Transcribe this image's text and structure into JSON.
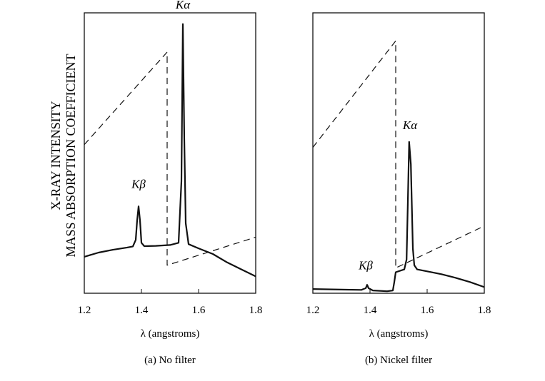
{
  "figure": {
    "ylabel_line1": "X-RAY INTENSITY",
    "ylabel_line2": "MASS ABSORPTION COEFFICIENT"
  },
  "chart_data": [
    {
      "type": "line",
      "panel": "a",
      "caption": "(a) No filter",
      "xlabel": "λ (angstroms)",
      "xlim": [
        1.2,
        1.8
      ],
      "xticks": [
        1.2,
        1.4,
        1.6,
        1.8
      ],
      "xtick_labels": [
        "1.2",
        "1.4",
        "1.6",
        "1.8"
      ],
      "ylim": [
        0,
        1
      ],
      "annotations": [
        {
          "text": "Kβ",
          "x": 1.39,
          "y": 0.36
        },
        {
          "text": "Kα",
          "x": 1.545,
          "y": 1.0
        }
      ],
      "series": [
        {
          "style": "solid",
          "x": [
            1.2,
            1.25,
            1.3,
            1.35,
            1.37,
            1.38,
            1.385,
            1.39,
            1.395,
            1.4,
            1.41,
            1.45,
            1.5,
            1.53,
            1.54,
            1.545,
            1.55,
            1.555,
            1.565,
            1.6,
            1.65,
            1.7,
            1.75,
            1.8
          ],
          "y": [
            0.13,
            0.145,
            0.155,
            0.163,
            0.167,
            0.19,
            0.26,
            0.31,
            0.26,
            0.18,
            0.168,
            0.169,
            0.172,
            0.18,
            0.4,
            0.96,
            0.55,
            0.25,
            0.175,
            0.16,
            0.14,
            0.11,
            0.085,
            0.06
          ]
        },
        {
          "style": "dashed",
          "x": [
            1.2,
            1.49,
            1.49,
            1.8
          ],
          "y": [
            0.53,
            0.86,
            0.1,
            0.2
          ]
        }
      ]
    },
    {
      "type": "line",
      "panel": "b",
      "caption": "(b) Nickel filter",
      "xlabel": "λ (angstroms)",
      "xlim": [
        1.2,
        1.8
      ],
      "xticks": [
        1.2,
        1.4,
        1.6,
        1.8
      ],
      "xtick_labels": [
        "1.2",
        "1.4",
        "1.6",
        "1.8"
      ],
      "ylim": [
        0,
        1
      ],
      "annotations": [
        {
          "text": "Kβ",
          "x": 1.385,
          "y": 0.07
        },
        {
          "text": "Kα",
          "x": 1.54,
          "y": 0.57
        }
      ],
      "series": [
        {
          "style": "solid",
          "x": [
            1.2,
            1.3,
            1.37,
            1.385,
            1.39,
            1.395,
            1.41,
            1.46,
            1.48,
            1.485,
            1.49,
            1.52,
            1.528,
            1.533,
            1.537,
            1.543,
            1.55,
            1.555,
            1.565,
            1.6,
            1.65,
            1.7,
            1.75,
            1.8
          ],
          "y": [
            0.015,
            0.013,
            0.012,
            0.018,
            0.03,
            0.018,
            0.01,
            0.007,
            0.01,
            0.04,
            0.075,
            0.085,
            0.12,
            0.35,
            0.54,
            0.46,
            0.16,
            0.1,
            0.085,
            0.078,
            0.068,
            0.055,
            0.04,
            0.022
          ]
        },
        {
          "style": "dashed",
          "x": [
            1.2,
            1.49,
            1.49,
            1.8
          ],
          "y": [
            0.52,
            0.9,
            0.09,
            0.24
          ]
        }
      ]
    }
  ]
}
